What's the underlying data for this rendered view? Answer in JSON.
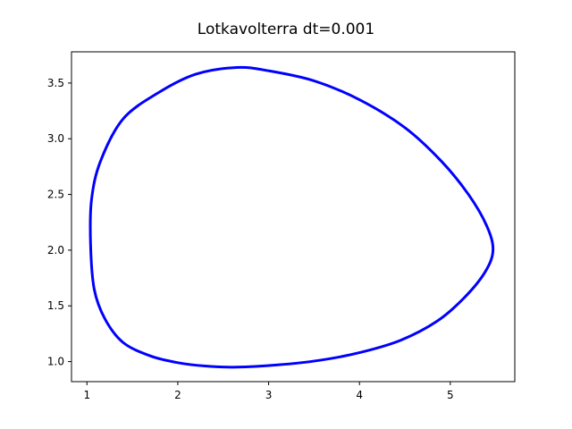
{
  "chart_data": {
    "type": "line",
    "title": "Lotkavolterra  dt=0.001",
    "xlabel": "",
    "ylabel": "",
    "xlim": [
      0.83,
      5.71
    ],
    "ylim": [
      0.82,
      3.78
    ],
    "xticks": [
      1,
      2,
      3,
      4,
      5
    ],
    "xtick_labels": [
      "1",
      "2",
      "3",
      "4",
      "5"
    ],
    "yticks": [
      1.0,
      1.5,
      2.0,
      2.5,
      3.0,
      3.5
    ],
    "ytick_labels": [
      "1.0",
      "1.5",
      "2.0",
      "2.5",
      "3.0",
      "3.5"
    ],
    "grid": false,
    "legend": "none",
    "series": [
      {
        "color": "#0000ff",
        "x": [
          2.65,
          3.1,
          3.55,
          4.0,
          4.45,
          4.85,
          5.15,
          5.38,
          5.47,
          5.4,
          5.2,
          4.9,
          4.5,
          4.0,
          3.5,
          3.0,
          2.65,
          2.2,
          1.8,
          1.4,
          1.15,
          1.05,
          1.04,
          1.08,
          1.2,
          1.4,
          1.7,
          2.0,
          2.3,
          2.65
        ],
        "y": [
          0.95,
          0.97,
          1.01,
          1.08,
          1.19,
          1.36,
          1.57,
          1.8,
          2.0,
          2.22,
          2.5,
          2.8,
          3.1,
          3.35,
          3.52,
          3.61,
          3.64,
          3.58,
          3.42,
          3.18,
          2.8,
          2.45,
          2.05,
          1.65,
          1.38,
          1.17,
          1.05,
          0.99,
          0.96,
          0.95
        ]
      }
    ]
  }
}
